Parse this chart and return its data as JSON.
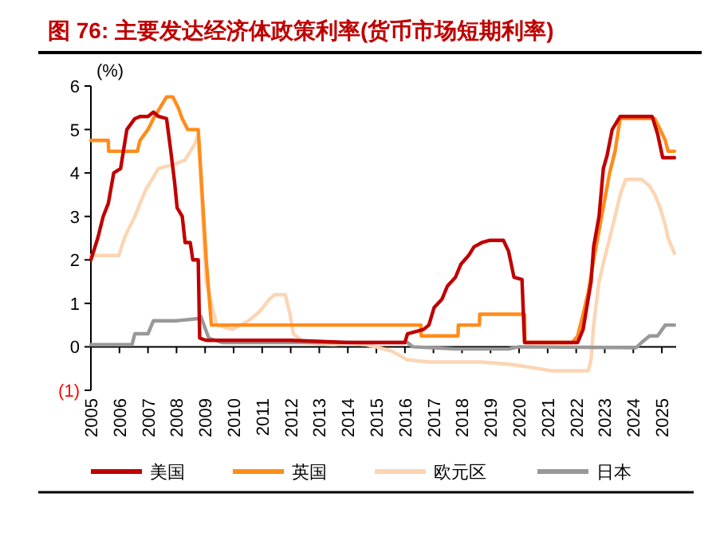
{
  "chart_data": {
    "type": "line",
    "title": "图 76: 主要发达经济体政策利率(货币市场短期利率)",
    "ylabel": "(%)",
    "xlim": [
      2005,
      2025.5
    ],
    "xticks": [
      2005,
      2006,
      2007,
      2008,
      2009,
      2010,
      2011,
      2012,
      2013,
      2014,
      2015,
      2016,
      2017,
      2018,
      2019,
      2020,
      2021,
      2022,
      2023,
      2024,
      2025
    ],
    "ylim": [
      -1,
      6
    ],
    "yticks": [
      {
        "value": -1,
        "label": "(1)"
      },
      0,
      1,
      2,
      3,
      4,
      5,
      6
    ],
    "legend": "bottom",
    "series": [
      {
        "name": "美国",
        "color": "#c00000",
        "x": [
          2005,
          2005.24,
          2005.43,
          2005.61,
          2005.8,
          2006.04,
          2006.26,
          2006.54,
          2006.72,
          2007.0,
          2007.19,
          2007.37,
          2007.65,
          2007.78,
          2007.93,
          2008.02,
          2008.2,
          2008.3,
          2008.48,
          2008.57,
          2008.76,
          2008.81,
          2009.04,
          2010,
          2012,
          2014,
          2016,
          2016.09,
          2016.65,
          2016.84,
          2017.02,
          2017.3,
          2017.49,
          2017.77,
          2017.96,
          2018.23,
          2018.42,
          2018.7,
          2018.98,
          2019.45,
          2019.63,
          2019.82,
          2020.1,
          2020.19,
          2022.05,
          2022.24,
          2022.52,
          2022.61,
          2022.8,
          2022.95,
          2023.08,
          2023.26,
          2023.54,
          2024.66,
          2024.85,
          2025.03,
          2025.44
        ],
        "values": [
          2.0,
          2.5,
          3.0,
          3.3,
          4.0,
          4.1,
          5.0,
          5.25,
          5.3,
          5.3,
          5.4,
          5.3,
          5.25,
          4.6,
          3.8,
          3.2,
          3.0,
          2.4,
          2.4,
          2.0,
          2.0,
          0.2,
          0.15,
          0.15,
          0.15,
          0.1,
          0.1,
          0.3,
          0.4,
          0.5,
          0.9,
          1.1,
          1.4,
          1.6,
          1.9,
          2.1,
          2.3,
          2.4,
          2.45,
          2.45,
          2.2,
          1.6,
          1.55,
          0.1,
          0.1,
          0.4,
          1.5,
          2.3,
          3.0,
          4.1,
          4.4,
          5.0,
          5.3,
          5.3,
          4.9,
          4.35,
          4.35
        ]
      },
      {
        "name": "英国",
        "color": "#ff8c1a",
        "x": [
          2005,
          2005.61,
          2005.62,
          2006.63,
          2006.72,
          2007.0,
          2007.19,
          2007.65,
          2007.87,
          2008.06,
          2008.2,
          2008.39,
          2008.76,
          2009.04,
          2009.22,
          2016.56,
          2016.57,
          2017.86,
          2017.87,
          2018.61,
          2018.62,
          2020.19,
          2020.2,
          2021.87,
          2022.05,
          2022.24,
          2022.42,
          2022.61,
          2022.89,
          2023.17,
          2023.36,
          2023.54,
          2024.75,
          2024.94,
          2025.12,
          2025.22,
          2025.44
        ],
        "values": [
          4.75,
          4.75,
          4.5,
          4.5,
          4.75,
          5.0,
          5.25,
          5.75,
          5.75,
          5.5,
          5.25,
          5.0,
          5.0,
          2.0,
          0.5,
          0.5,
          0.25,
          0.25,
          0.5,
          0.5,
          0.75,
          0.75,
          0.1,
          0.1,
          0.25,
          0.75,
          1.25,
          2.0,
          3.0,
          4.0,
          4.5,
          5.25,
          5.25,
          5.0,
          4.75,
          4.5,
          4.5
        ]
      },
      {
        "name": "欧元区",
        "color": "#fcd5b4",
        "x": [
          2005,
          2005.98,
          2006.17,
          2006.35,
          2006.54,
          2006.72,
          2006.91,
          2007.09,
          2007.37,
          2007.93,
          2008.3,
          2008.67,
          2008.76,
          2009.04,
          2009.22,
          2009.41,
          2009.96,
          2010.52,
          2010.89,
          2011.26,
          2011.44,
          2011.81,
          2011.96,
          2012.09,
          2012.46,
          2013.5,
          2014.04,
          2014.6,
          2014.98,
          2015.54,
          2016.09,
          2016.84,
          2018.7,
          2019.63,
          2020.19,
          2021.12,
          2022.42,
          2022.52,
          2022.61,
          2022.8,
          2022.98,
          2023.17,
          2023.36,
          2023.54,
          2023.73,
          2024.29,
          2024.57,
          2024.75,
          2024.94,
          2025.12,
          2025.22,
          2025.44
        ],
        "values": [
          2.1,
          2.1,
          2.5,
          2.75,
          3.0,
          3.3,
          3.6,
          3.8,
          4.1,
          4.2,
          4.3,
          4.7,
          4.9,
          1.5,
          1.0,
          0.5,
          0.4,
          0.6,
          0.8,
          1.1,
          1.2,
          1.2,
          0.8,
          0.3,
          0.1,
          0.05,
          0.1,
          0.05,
          0.0,
          -0.1,
          -0.3,
          -0.35,
          -0.35,
          -0.4,
          -0.45,
          -0.55,
          -0.55,
          -0.3,
          0.5,
          1.5,
          2.0,
          2.5,
          3.0,
          3.5,
          3.85,
          3.85,
          3.7,
          3.5,
          3.2,
          2.8,
          2.5,
          2.15
        ]
      },
      {
        "name": "日本",
        "color": "#999999",
        "x": [
          2005,
          2006.44,
          2006.54,
          2007.0,
          2007.19,
          2008.02,
          2008.76,
          2008.85,
          2009.13,
          2009.59,
          2014,
          2016.09,
          2016.28,
          2017.77,
          2019.63,
          2020.0,
          2024.1,
          2024.29,
          2024.57,
          2024.85,
          2025.12,
          2025.44
        ],
        "values": [
          0.05,
          0.05,
          0.3,
          0.3,
          0.6,
          0.6,
          0.65,
          0.7,
          0.2,
          0.1,
          0.1,
          0.1,
          0.0,
          -0.05,
          -0.05,
          0.0,
          -0.02,
          0.1,
          0.25,
          0.25,
          0.5,
          0.5
        ]
      }
    ]
  }
}
